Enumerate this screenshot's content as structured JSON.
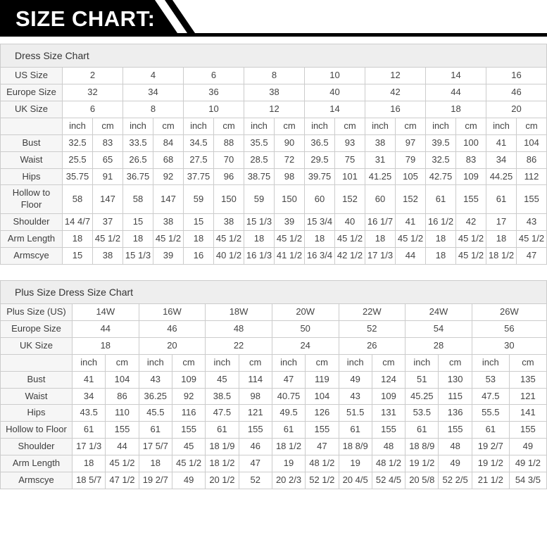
{
  "banner": {
    "title": "SIZE CHART:"
  },
  "colors": {
    "banner_bg": "#000000",
    "banner_text": "#ffffff",
    "table_border": "#cccccc",
    "title_bar_bg": "#eeeeee",
    "label_column_bg": "#f6f6f6"
  },
  "tables": [
    {
      "title": "Dress Size Chart",
      "unit_headers": [
        "inch",
        "cm"
      ],
      "size_rows": [
        {
          "label": "US Size",
          "values": [
            "2",
            "4",
            "6",
            "8",
            "10",
            "12",
            "14",
            "16"
          ]
        },
        {
          "label": "Europe Size",
          "values": [
            "32",
            "34",
            "36",
            "38",
            "40",
            "42",
            "44",
            "46"
          ]
        },
        {
          "label": "UK Size",
          "values": [
            "6",
            "8",
            "10",
            "12",
            "14",
            "16",
            "18",
            "20"
          ]
        }
      ],
      "measure_rows": [
        {
          "label": "Bust",
          "pairs": [
            [
              "32.5",
              "83"
            ],
            [
              "33.5",
              "84"
            ],
            [
              "34.5",
              "88"
            ],
            [
              "35.5",
              "90"
            ],
            [
              "36.5",
              "93"
            ],
            [
              "38",
              "97"
            ],
            [
              "39.5",
              "100"
            ],
            [
              "41",
              "104"
            ]
          ]
        },
        {
          "label": "Waist",
          "pairs": [
            [
              "25.5",
              "65"
            ],
            [
              "26.5",
              "68"
            ],
            [
              "27.5",
              "70"
            ],
            [
              "28.5",
              "72"
            ],
            [
              "29.5",
              "75"
            ],
            [
              "31",
              "79"
            ],
            [
              "32.5",
              "83"
            ],
            [
              "34",
              "86"
            ]
          ]
        },
        {
          "label": "Hips",
          "pairs": [
            [
              "35.75",
              "91"
            ],
            [
              "36.75",
              "92"
            ],
            [
              "37.75",
              "96"
            ],
            [
              "38.75",
              "98"
            ],
            [
              "39.75",
              "101"
            ],
            [
              "41.25",
              "105"
            ],
            [
              "42.75",
              "109"
            ],
            [
              "44.25",
              "112"
            ]
          ]
        },
        {
          "label": "Hollow to Floor",
          "pairs": [
            [
              "58",
              "147"
            ],
            [
              "58",
              "147"
            ],
            [
              "59",
              "150"
            ],
            [
              "59",
              "150"
            ],
            [
              "60",
              "152"
            ],
            [
              "60",
              "152"
            ],
            [
              "61",
              "155"
            ],
            [
              "61",
              "155"
            ]
          ]
        },
        {
          "label": "Shoulder",
          "pairs": [
            [
              "14 4/7",
              "37"
            ],
            [
              "15",
              "38"
            ],
            [
              "15",
              "38"
            ],
            [
              "15 1/3",
              "39"
            ],
            [
              "15 3/4",
              "40"
            ],
            [
              "16 1/7",
              "41"
            ],
            [
              "16 1/2",
              "42"
            ],
            [
              "17",
              "43"
            ]
          ]
        },
        {
          "label": "Arm Length",
          "pairs": [
            [
              "18",
              "45 1/2"
            ],
            [
              "18",
              "45 1/2"
            ],
            [
              "18",
              "45 1/2"
            ],
            [
              "18",
              "45 1/2"
            ],
            [
              "18",
              "45 1/2"
            ],
            [
              "18",
              "45 1/2"
            ],
            [
              "18",
              "45 1/2"
            ],
            [
              "18",
              "45 1/2"
            ]
          ]
        },
        {
          "label": "Armscye",
          "pairs": [
            [
              "15",
              "38"
            ],
            [
              "15 1/3",
              "39"
            ],
            [
              "16",
              "40 1/2"
            ],
            [
              "16 1/3",
              "41 1/2"
            ],
            [
              "16 3/4",
              "42 1/2"
            ],
            [
              "17 1/3",
              "44"
            ],
            [
              "18",
              "45 1/2"
            ],
            [
              "18 1/2",
              "47"
            ]
          ]
        }
      ]
    },
    {
      "title": "Plus Size Dress Size Chart",
      "unit_headers": [
        "inch",
        "cm"
      ],
      "size_rows": [
        {
          "label": "Plus Size (US)",
          "values": [
            "14W",
            "16W",
            "18W",
            "20W",
            "22W",
            "24W",
            "26W"
          ]
        },
        {
          "label": "Europe Size",
          "values": [
            "44",
            "46",
            "48",
            "50",
            "52",
            "54",
            "56"
          ]
        },
        {
          "label": "UK Size",
          "values": [
            "18",
            "20",
            "22",
            "24",
            "26",
            "28",
            "30"
          ]
        }
      ],
      "measure_rows": [
        {
          "label": "Bust",
          "pairs": [
            [
              "41",
              "104"
            ],
            [
              "43",
              "109"
            ],
            [
              "45",
              "114"
            ],
            [
              "47",
              "119"
            ],
            [
              "49",
              "124"
            ],
            [
              "51",
              "130"
            ],
            [
              "53",
              "135"
            ]
          ]
        },
        {
          "label": "Waist",
          "pairs": [
            [
              "34",
              "86"
            ],
            [
              "36.25",
              "92"
            ],
            [
              "38.5",
              "98"
            ],
            [
              "40.75",
              "104"
            ],
            [
              "43",
              "109"
            ],
            [
              "45.25",
              "115"
            ],
            [
              "47.5",
              "121"
            ]
          ]
        },
        {
          "label": "Hips",
          "pairs": [
            [
              "43.5",
              "110"
            ],
            [
              "45.5",
              "116"
            ],
            [
              "47.5",
              "121"
            ],
            [
              "49.5",
              "126"
            ],
            [
              "51.5",
              "131"
            ],
            [
              "53.5",
              "136"
            ],
            [
              "55.5",
              "141"
            ]
          ]
        },
        {
          "label": "Hollow to Floor",
          "pairs": [
            [
              "61",
              "155"
            ],
            [
              "61",
              "155"
            ],
            [
              "61",
              "155"
            ],
            [
              "61",
              "155"
            ],
            [
              "61",
              "155"
            ],
            [
              "61",
              "155"
            ],
            [
              "61",
              "155"
            ]
          ]
        },
        {
          "label": "Shoulder",
          "pairs": [
            [
              "17 1/3",
              "44"
            ],
            [
              "17 5/7",
              "45"
            ],
            [
              "18 1/9",
              "46"
            ],
            [
              "18 1/2",
              "47"
            ],
            [
              "18 8/9",
              "48"
            ],
            [
              "18 8/9",
              "48"
            ],
            [
              "19 2/7",
              "49"
            ]
          ]
        },
        {
          "label": "Arm Length",
          "pairs": [
            [
              "18",
              "45 1/2"
            ],
            [
              "18",
              "45 1/2"
            ],
            [
              "18 1/2",
              "47"
            ],
            [
              "19",
              "48 1/2"
            ],
            [
              "19",
              "48 1/2"
            ],
            [
              "19 1/2",
              "49"
            ],
            [
              "19 1/2",
              "49 1/2"
            ]
          ]
        },
        {
          "label": "Armscye",
          "pairs": [
            [
              "18 5/7",
              "47 1/2"
            ],
            [
              "19 2/7",
              "49"
            ],
            [
              "20 1/2",
              "52"
            ],
            [
              "20 2/3",
              "52 1/2"
            ],
            [
              "20 4/5",
              "52 4/5"
            ],
            [
              "20 5/8",
              "52 2/5"
            ],
            [
              "21 1/2",
              "54 3/5"
            ]
          ]
        }
      ]
    }
  ]
}
